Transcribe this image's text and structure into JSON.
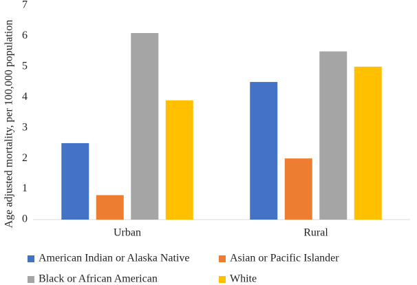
{
  "chart_data": {
    "type": "bar",
    "y_label": "Age adjusted mortality, per 100,000 population",
    "categories": [
      "Urban",
      "Rural"
    ],
    "series": [
      {
        "name": "American Indian or Alaska Native",
        "color": "#4472c4",
        "values": [
          2.5,
          4.5
        ]
      },
      {
        "name": "Asian or Pacific Islander",
        "color": "#ed7d31",
        "values": [
          0.8,
          2.0
        ]
      },
      {
        "name": "Black or African American",
        "color": "#a5a5a5",
        "values": [
          6.1,
          5.5
        ]
      },
      {
        "name": "White",
        "color": "#ffc000",
        "values": [
          3.9,
          5.0
        ]
      }
    ],
    "ylim": [
      0,
      7
    ],
    "yticks": [
      0,
      1,
      2,
      3,
      4,
      5,
      6,
      7
    ],
    "grid": false,
    "legend": "bottom"
  }
}
